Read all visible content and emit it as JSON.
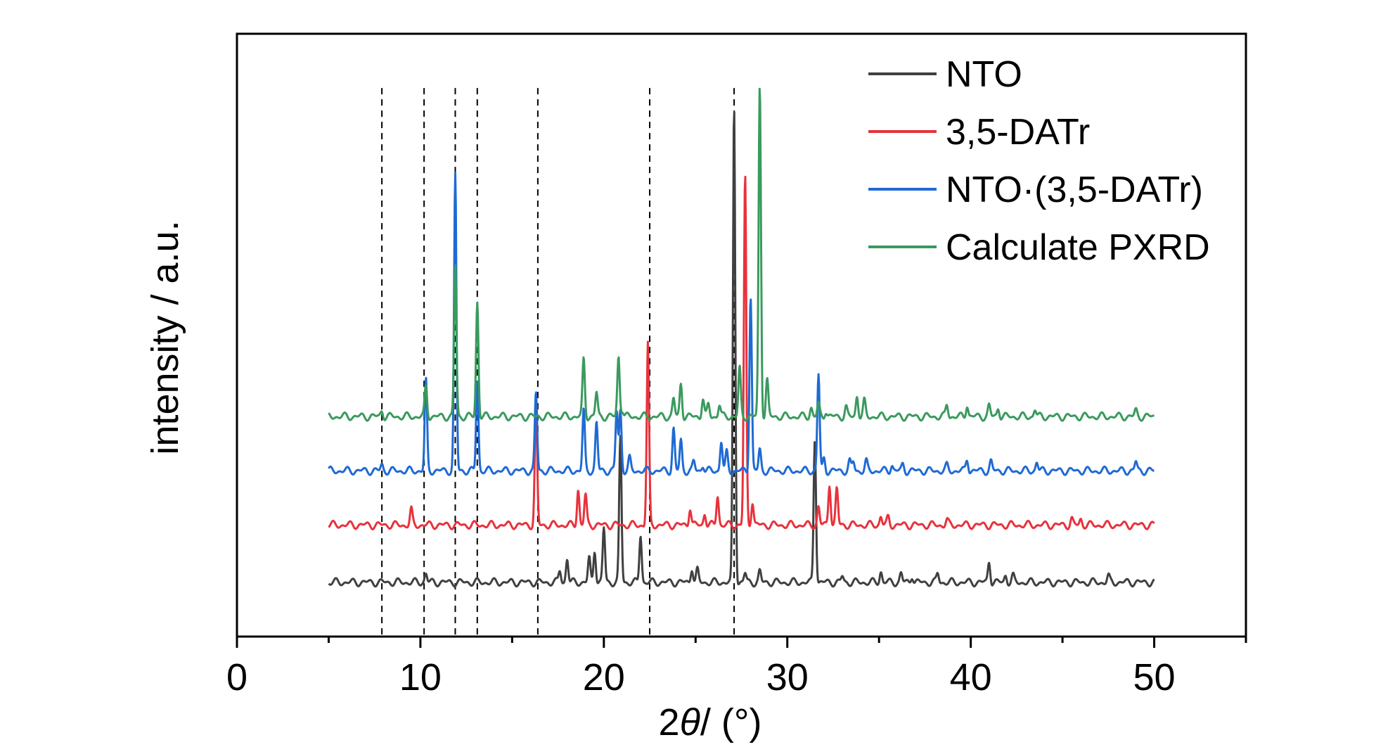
{
  "chart_data": {
    "type": "line",
    "title": "",
    "xlabel_prefix": "2",
    "xlabel_theta": "θ",
    "xlabel_suffix": "/ (°)",
    "ylabel": "intensity / a.u.",
    "xlim": [
      0,
      55
    ],
    "ylim": [
      0,
      1
    ],
    "x_ticks": [
      0,
      10,
      20,
      30,
      40,
      50
    ],
    "x_tick_labels": [
      "0",
      "10",
      "20",
      "30",
      "40",
      "50"
    ],
    "grid": false,
    "legend_position": "top-right",
    "reference_lines_x": [
      7.9,
      10.2,
      11.9,
      13.1,
      16.4,
      22.5,
      27.1
    ],
    "series": [
      {
        "name": "NTO",
        "color": "#404040",
        "baseline": 0.09,
        "peaks": [
          [
            10.3,
            0.015
          ],
          [
            17.6,
            0.02
          ],
          [
            18.0,
            0.04
          ],
          [
            19.2,
            0.04
          ],
          [
            19.5,
            0.055
          ],
          [
            20.0,
            0.09
          ],
          [
            20.9,
            0.24
          ],
          [
            22.0,
            0.08
          ],
          [
            24.8,
            0.025
          ],
          [
            25.1,
            0.02
          ],
          [
            27.1,
            0.79
          ],
          [
            27.7,
            0.015
          ],
          [
            28.5,
            0.018
          ],
          [
            31.5,
            0.24
          ],
          [
            33.0,
            0.01
          ],
          [
            35.1,
            0.018
          ],
          [
            36.2,
            0.015
          ],
          [
            36.8,
            0.012
          ],
          [
            38.2,
            0.015
          ],
          [
            41.0,
            0.035
          ],
          [
            41.9,
            0.012
          ],
          [
            42.3,
            0.01
          ],
          [
            47.5,
            0.01
          ]
        ]
      },
      {
        "name": "3,5-DATr",
        "color": "#e8323c",
        "baseline": 0.185,
        "peaks": [
          [
            9.5,
            0.025
          ],
          [
            16.3,
            0.2
          ],
          [
            18.6,
            0.06
          ],
          [
            19.0,
            0.05
          ],
          [
            22.4,
            0.3
          ],
          [
            24.7,
            0.03
          ],
          [
            25.5,
            0.02
          ],
          [
            26.2,
            0.05
          ],
          [
            27.7,
            0.58
          ],
          [
            28.1,
            0.04
          ],
          [
            31.7,
            0.03
          ],
          [
            32.3,
            0.07
          ],
          [
            32.7,
            0.06
          ],
          [
            35.1,
            0.015
          ],
          [
            35.5,
            0.012
          ],
          [
            38.7,
            0.008
          ],
          [
            45.5,
            0.01
          ],
          [
            46.0,
            0.01
          ]
        ]
      },
      {
        "name": "NTO·(3,5-DATr)",
        "color": "#1f6ad4",
        "baseline": 0.275,
        "peaks": [
          [
            7.9,
            0.01
          ],
          [
            10.3,
            0.15
          ],
          [
            11.9,
            0.49
          ],
          [
            13.1,
            0.15
          ],
          [
            16.3,
            0.13
          ],
          [
            18.9,
            0.1
          ],
          [
            19.6,
            0.08
          ],
          [
            20.7,
            0.1
          ],
          [
            20.9,
            0.1
          ],
          [
            21.4,
            0.02
          ],
          [
            23.8,
            0.07
          ],
          [
            24.2,
            0.05
          ],
          [
            24.9,
            0.015
          ],
          [
            25.4,
            0.01
          ],
          [
            26.4,
            0.05
          ],
          [
            26.7,
            0.03
          ],
          [
            28.0,
            0.29
          ],
          [
            28.5,
            0.035
          ],
          [
            31.7,
            0.16
          ],
          [
            32.0,
            0.02
          ],
          [
            33.4,
            0.015
          ],
          [
            33.6,
            0.015
          ],
          [
            34.3,
            0.015
          ],
          [
            35.7,
            0.01
          ],
          [
            36.3,
            0.01
          ],
          [
            38.7,
            0.008
          ],
          [
            39.8,
            0.02
          ],
          [
            41.1,
            0.015
          ],
          [
            43.6,
            0.015
          ],
          [
            49.0,
            0.015
          ]
        ]
      },
      {
        "name": "Calculate PXRD",
        "color": "#3a9a5e",
        "baseline": 0.365,
        "peaks": [
          [
            7.9,
            0.01
          ],
          [
            10.3,
            0.05
          ],
          [
            11.9,
            0.25
          ],
          [
            13.1,
            0.19
          ],
          [
            18.9,
            0.095
          ],
          [
            19.6,
            0.04
          ],
          [
            20.8,
            0.1
          ],
          [
            21.0,
            0.012
          ],
          [
            23.8,
            0.03
          ],
          [
            24.2,
            0.055
          ],
          [
            25.4,
            0.03
          ],
          [
            25.7,
            0.02
          ],
          [
            26.3,
            0.02
          ],
          [
            27.4,
            0.08
          ],
          [
            28.5,
            0.55
          ],
          [
            28.9,
            0.06
          ],
          [
            31.3,
            0.015
          ],
          [
            31.7,
            0.02
          ],
          [
            32.1,
            0.01
          ],
          [
            33.2,
            0.015
          ],
          [
            33.8,
            0.035
          ],
          [
            34.2,
            0.025
          ],
          [
            38.7,
            0.02
          ],
          [
            39.8,
            0.02
          ],
          [
            41.0,
            0.018
          ],
          [
            41.5,
            0.015
          ],
          [
            43.5,
            0.012
          ],
          [
            49.0,
            0.01
          ]
        ]
      }
    ]
  }
}
